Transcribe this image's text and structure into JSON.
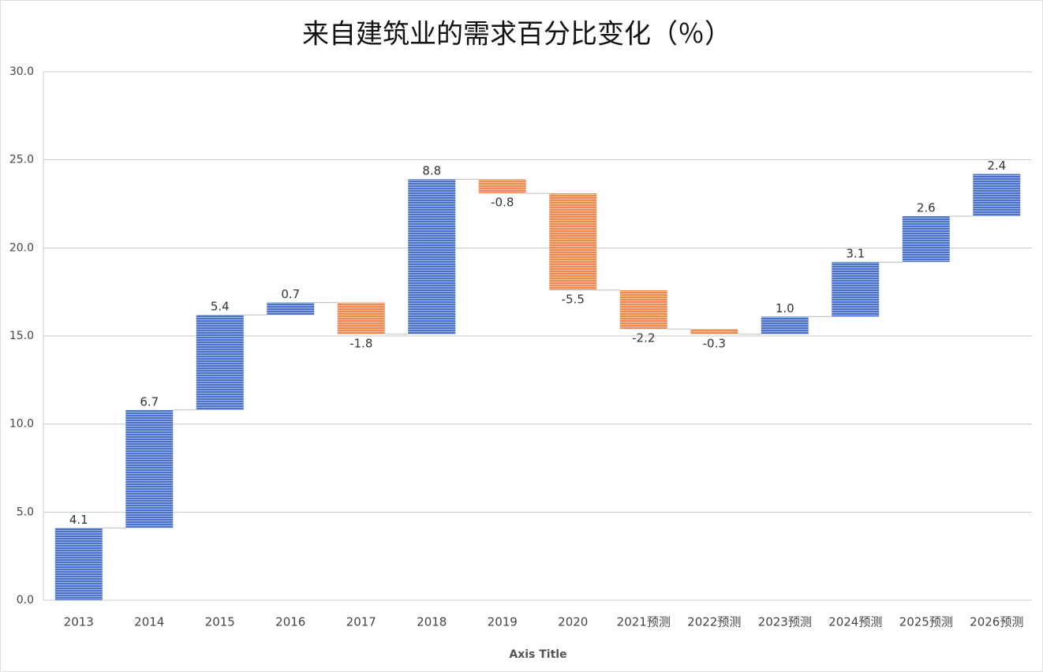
{
  "chart_data": {
    "type": "waterfall",
    "title": "来自建筑业的需求百分比变化（％）",
    "x_axis_title": "Axis Title",
    "categories": [
      "2013",
      "2014",
      "2015",
      "2016",
      "2017",
      "2018",
      "2019",
      "2020",
      "2021预测",
      "2022预测",
      "2023预测",
      "2024预测",
      "2025预测",
      "2026预测"
    ],
    "values": [
      4.1,
      6.7,
      5.4,
      0.7,
      -1.8,
      8.8,
      -0.8,
      -5.5,
      -2.2,
      -0.3,
      1.0,
      3.1,
      2.6,
      2.4
    ],
    "value_labels": [
      "4.1",
      "6.7",
      "5.4",
      "0.7",
      "-1.8",
      "8.8",
      "-0.8",
      "-5.5",
      "-2.2",
      "-0.3",
      "1.0",
      "3.1",
      "2.6",
      "2.4"
    ],
    "color": "#4a72c8",
    "negative_color": "#ee8a4f",
    "ylim": [
      0,
      30
    ],
    "yticks": [
      {
        "value": 0,
        "label": "0.0"
      },
      {
        "value": 5,
        "label": "5.0"
      },
      {
        "value": 10,
        "label": "10.0"
      },
      {
        "value": 15,
        "label": "15.0"
      },
      {
        "value": 20,
        "label": "20.0"
      },
      {
        "value": 25,
        "label": "25.0"
      },
      {
        "value": 30,
        "label": "30.0"
      }
    ],
    "grid": true
  }
}
